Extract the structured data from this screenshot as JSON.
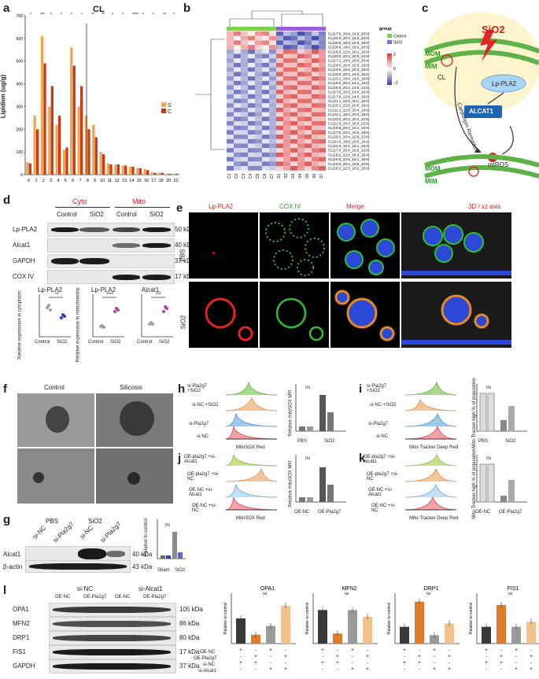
{
  "panels": {
    "a": "a",
    "b": "b",
    "c": "c",
    "d": "d",
    "e": "e",
    "f": "f",
    "g": "g",
    "h": "h",
    "i": "i",
    "j": "j",
    "k": "k",
    "l": "l"
  },
  "panel_a": {
    "title": "CL",
    "ylabel": "Lipidion (ug/g)",
    "legend": [
      {
        "label": "S",
        "color": "#f0a64a"
      },
      {
        "label": "C",
        "color": "#c9391f"
      }
    ],
    "xticks": [
      "0",
      "1",
      "2",
      "3",
      "4",
      "5",
      "6",
      "7",
      "8",
      "9",
      "10",
      "11",
      "12",
      "13",
      "14",
      "15",
      "16",
      "17",
      "18",
      "20",
      "22"
    ],
    "yticks": [
      "0",
      "100",
      "200",
      "300",
      "400",
      "500",
      "600",
      "700"
    ],
    "sig": [
      "*",
      "***",
      "*",
      "*",
      "*",
      "*",
      "**",
      "**",
      "*",
      "*",
      "****",
      "*",
      "*",
      "**",
      "*"
    ]
  },
  "chart_data": [
    {
      "type": "bar",
      "title": "CL",
      "ylabel": "Lipidion (ug/g)",
      "ylim": [
        0,
        700
      ],
      "categories": [
        "0",
        "1",
        "2",
        "3",
        "4",
        "5",
        "6",
        "7",
        "8",
        "9",
        "10",
        "11",
        "12",
        "13",
        "14",
        "15",
        "16",
        "17",
        "18",
        "20",
        "22"
      ],
      "series": [
        {
          "name": "S",
          "values": [
            55,
            260,
            610,
            300,
            220,
            110,
            560,
            300,
            260,
            220,
            100,
            50,
            45,
            40,
            35,
            30,
            25,
            10,
            10,
            5,
            5
          ]
        },
        {
          "name": "C",
          "values": [
            50,
            200,
            490,
            390,
            260,
            120,
            480,
            390,
            200,
            165,
            90,
            45,
            45,
            40,
            35,
            28,
            20,
            8,
            8,
            4,
            4
          ]
        }
      ]
    },
    {
      "type": "bar",
      "title": "OPA1",
      "ylabel": "Relative to control",
      "ylim": [
        0,
        2.0
      ],
      "categories": [
        "OE-NC+si-NC",
        "OE-Pla2g7+si-NC",
        "OE-NC+si-Alcat1",
        "OE-Pla2g7+si-Alcat1"
      ],
      "values": [
        1.0,
        0.35,
        0.7,
        1.5
      ]
    },
    {
      "type": "bar",
      "title": "MFN2",
      "ylabel": "Relative to control",
      "ylim": [
        0,
        1.5
      ],
      "categories": [
        "OE-NC+si-NC",
        "OE-Pla2g7+si-NC",
        "OE-NC+si-Alcat1",
        "OE-Pla2g7+si-Alcat1"
      ],
      "values": [
        1.0,
        0.3,
        1.0,
        0.8
      ]
    },
    {
      "type": "bar",
      "title": "DRP1",
      "ylabel": "Relative to control",
      "ylim": [
        0,
        3
      ],
      "categories": [
        "OE-NC+si-NC",
        "OE-Pla2g7+si-NC",
        "OE-NC+si-Alcat1",
        "OE-Pla2g7+si-Alcat1"
      ],
      "values": [
        1.0,
        2.5,
        0.5,
        1.2
      ]
    },
    {
      "type": "bar",
      "title": "FIS1",
      "ylabel": "Relative to control",
      "ylim": [
        0,
        3
      ],
      "categories": [
        "OE-NC+si-NC",
        "OE-Pla2g7+si-NC",
        "OE-NC+si-Alcat1",
        "OE-Pla2g7+si-Alcat1"
      ],
      "values": [
        1.0,
        2.3,
        1.0,
        1.3
      ]
    }
  ],
  "panel_b": {
    "legend_title": "group",
    "legend": [
      {
        "label": "Control",
        "color": "#7cd24a"
      },
      {
        "label": "SiO2",
        "color": "#9a5fe0"
      }
    ],
    "scale": [
      "2",
      "0",
      "−2"
    ],
    "rows": [
      "CL(17:0_20:0_16:0_20:0)",
      "CL(24:0_20:0_18:0_22:0)",
      "CL(20:0_18:0_22:0_18:0)",
      "CL(24:0_18:0_18:0_20:0)",
      "CL(19:0_22:5_16:1_16:0)",
      "CL(23:0_20:3_22:6_22:6)",
      "CL(17:1_16:0_20:0_20:4)",
      "CL(24:0_20:4_22:5_16:0)",
      "CL(19:0_22:5_16:0_18:2)",
      "CL(19:0_20:3_16:0_18:2)",
      "CL(23:1_20:4_16:0_18:0)",
      "CL(19:0_20:3_16:1_16:0)",
      "CL(15:0_20:3_14:0_14:0)",
      "CL(17:0_20:3_14:0_16:0)",
      "CL(17:0_22:6_14:0_16:0)",
      "CL(21:1_22:6_20:1_16:0)",
      "CL(19:1_22:6_16:0_18:2)",
      "CL(21:1_22:6_20:4_18:0)",
      "CL(22:1_16:0_20:4_18:0)",
      "CL(23:0_20:3_20:4_22:6)",
      "CL(21:0_20:3_16:0_22:0)",
      "CL(19:0_20:4_16:1_16:0)",
      "CL(17:0_20:4_16:0_18:0)",
      "CL(19:1_20:4_22:6_22:6)",
      "CL(21:0_16:0_20:0_18:2)",
      "CL(22:3_16:1_15:1_16:0)",
      "CL(17:0_20:4_16:0_22:0)",
      "CL(18:2_22:5_20:3_16:0)",
      "CL(19:0_22:5_16:1_18:0)",
      "CL(19:0_20:2_22:5_22:5)",
      "CL(18:2_22:3_18:2_15:0)"
    ],
    "cols": [
      "C1",
      "C2",
      "C3",
      "C4",
      "C5",
      "C6",
      "C7",
      "S1",
      "S2",
      "S3",
      "S4",
      "S5",
      "S6",
      "S7"
    ]
  },
  "panel_c": {
    "sio2": "SiO2",
    "mom": "MOM",
    "mim": "MIM",
    "cl": "CL",
    "lppla2": "Lp-PLA2",
    "alcat1": "ALCAT1",
    "remodel": "Cardiolipin Remodel",
    "mtros": "mtROS",
    "mom2": "MOM",
    "mim2": "MIM"
  },
  "panel_d": {
    "cyto": "Cyto",
    "mito": "Mito",
    "lanes": [
      "Control",
      "SiO2",
      "Control",
      "SiO2"
    ],
    "blots": [
      {
        "name": "Lp-PLA2",
        "kda": "50 kDa"
      },
      {
        "name": "Alcat1",
        "kda": "40 kDa"
      },
      {
        "name": "GAPDH",
        "kda": "37 kDa"
      },
      {
        "name": "COX IV",
        "kda": "17 kDa"
      }
    ],
    "plots": [
      {
        "title": "Lp-PLA2",
        "ylabel": "Relative expression in cytoplasm",
        "sig": "**",
        "x": [
          "Control",
          "SiO2"
        ]
      },
      {
        "title": "Lp-PLA2",
        "ylabel": "Relative expression in mitochondria",
        "sig": "****",
        "x": [
          "Control",
          "SiO2"
        ]
      },
      {
        "title": "Alcat1",
        "ylabel": "",
        "sig": "***",
        "x": [
          "Control",
          "SiO2"
        ]
      }
    ]
  },
  "panel_e": {
    "cols": [
      "Lp-PLA2",
      "COX IV",
      "Merge",
      "3D / xz axis"
    ],
    "rows": [
      "PBS",
      "SiO2"
    ]
  },
  "panel_f": {
    "cols": [
      "Control",
      "Silicosis"
    ]
  },
  "panel_g": {
    "pbs": "PBS",
    "sio2": "SiO2",
    "lanes": [
      "si-NC",
      "si-Pla2g7",
      "si-NC",
      "si-Pla2g7"
    ],
    "blots": [
      {
        "name": "Alcat1",
        "kda": "40 kDa"
      },
      {
        "name": "β-actin",
        "kda": "43 kDa"
      }
    ],
    "ylabel": "Relative to control",
    "ns": "ns",
    "groups": [
      "Sham",
      "SiO2"
    ]
  },
  "panel_h": {
    "rows": [
      "si-Pla2g7 +SiO2",
      "si-NC +SiO2",
      "si-Pla2g7",
      "si-NC"
    ],
    "xlabel": "MitoSOX Red",
    "ylabel": "Relative mitoSOX MFI",
    "groups": [
      "PBS",
      "SiO2"
    ],
    "ns": "ns"
  },
  "panel_i": {
    "rows": [
      "si-Pla2g7 +SiO2",
      "si-NC +SiO2",
      "si-Pla2g7",
      "si-NC"
    ],
    "xlabel": "Mito-Tracker Deep Red",
    "ylabel": "Mito-Tracker high % of population",
    "groups": [
      "PBS",
      "SiO2"
    ],
    "ns": "ns"
  },
  "panel_j": {
    "rows": [
      "OE-pla2g7 +si-Alcat1",
      "OE-pla2g7 +si-NC",
      "OE-NC +si-Alcat1",
      "OE-NC +si-NC"
    ],
    "xlabel": "MitoSOX Red",
    "ylabel": "Relative mitoSOX MFI",
    "groups": [
      "OE-NC",
      "OE-Pla2g7"
    ],
    "ns": "ns"
  },
  "panel_k": {
    "rows": [
      "OE-pla2g7 +si-Alcat1",
      "OE-pla2g7 +si-NC",
      "OE-NC +si-Alcat1",
      "OE-NC +si-NC"
    ],
    "xlabel": "Mito-Tracker Deep Red",
    "ylabel": "Mito-Tracker high % of population",
    "groups": [
      "OE-NC",
      "OE-Pla2g7"
    ],
    "ns": "ns"
  },
  "panel_l": {
    "sinc": "si-NC",
    "sialcat1": "si-Alcat1",
    "lanes": [
      "OE-NC",
      "OE-Pla2g7",
      "OE-NC",
      "OE-Pla2g7"
    ],
    "blots": [
      {
        "name": "OPA1",
        "kda": "105 kDa"
      },
      {
        "name": "MFN2",
        "kda": "86 kDa"
      },
      {
        "name": "DRP1",
        "kda": "80 kDa"
      },
      {
        "name": "FIS1",
        "kda": "17 kDa"
      },
      {
        "name": "GAPDH",
        "kda": "37 kDa"
      }
    ],
    "cond_rows": [
      "OE-NC",
      "OE-Pla2g7",
      "si-NC",
      "si-Alcat1"
    ],
    "cond_signs": [
      [
        "+",
        "-",
        "+",
        "-"
      ],
      [
        "-",
        "+",
        "-",
        "+"
      ],
      [
        "+",
        "+",
        "-",
        "-"
      ],
      [
        "-",
        "-",
        "+",
        "+"
      ]
    ],
    "ylabel": "Relative to control",
    "ns": "ns"
  }
}
